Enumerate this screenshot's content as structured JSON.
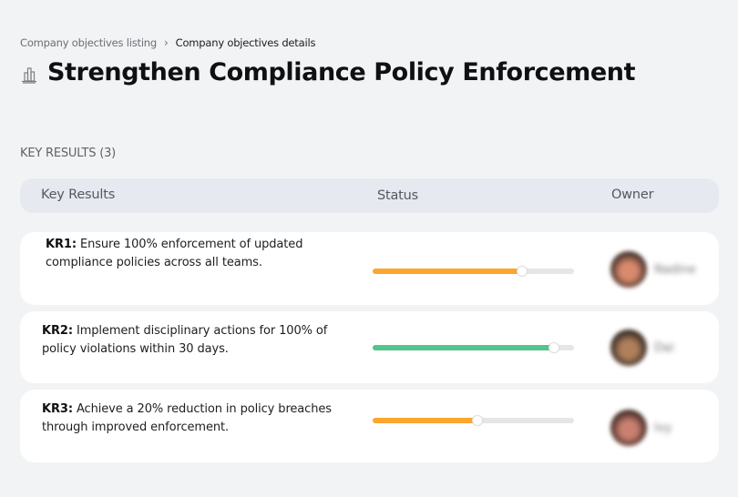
{
  "breadcrumb": {
    "parent": "Company objectives listing",
    "separator": "›",
    "current": "Company objectives details"
  },
  "page": {
    "icon": "buildings-chart-icon",
    "title": "Strengthen Compliance Policy Enforcement"
  },
  "key_results_section": {
    "label": "KEY RESULTS (3)"
  },
  "table": {
    "headers": {
      "key_results": "Key Results",
      "status": "Status",
      "owner": "Owner"
    },
    "rows": [
      {
        "code": "KR1:",
        "text": " Ensure 100% enforcement of updated compliance policies across all teams.",
        "progress_percent": 74,
        "progress_color": "#fba72f",
        "owner_name": "Nadine",
        "avatar_colors": [
          "#3a2a24",
          "#d98a6c"
        ]
      },
      {
        "code": "KR2:",
        "text": " Implement disciplinary actions for 100% of policy violations within 30 days.",
        "progress_percent": 90,
        "progress_color": "#52c48d",
        "owner_name": "Dai",
        "avatar_colors": [
          "#2d2420",
          "#b0805c"
        ]
      },
      {
        "code": "KR3:",
        "text": " Achieve a 20% reduction in policy breaches through improved enforcement.",
        "progress_percent": 52,
        "progress_color": "#fba72f",
        "owner_name": "Ivy",
        "avatar_colors": [
          "#3a2420",
          "#c98070"
        ]
      }
    ]
  }
}
